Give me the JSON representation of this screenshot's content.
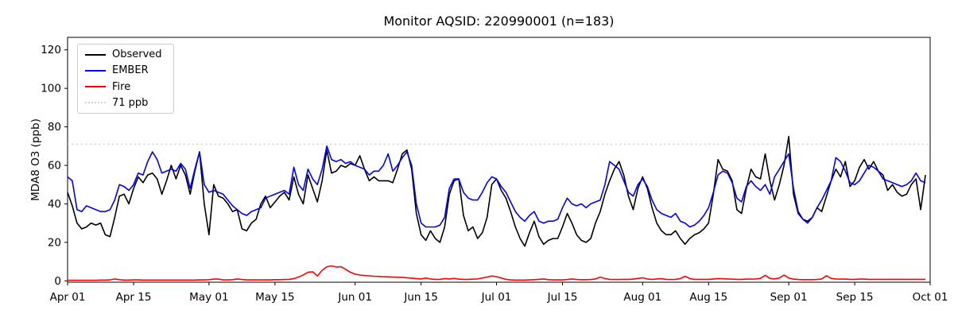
{
  "figure": {
    "title": "Monitor AQSID: 220990001 (n=183)"
  },
  "chart_data": {
    "type": "line",
    "title": "Monitor AQSID: 220990001 (n=183)",
    "xlabel": "",
    "ylabel": "MDA8 O3 (ppb)",
    "n_points": 183,
    "date_range": [
      "Apr 01",
      "Sep 30"
    ],
    "grid": false,
    "legend_position": "upper left",
    "ylim": [
      -1,
      126.5
    ],
    "y_ticks": [
      0,
      20,
      40,
      60,
      80,
      100,
      120
    ],
    "x_ticks": [
      {
        "label": "Apr 01",
        "day": 0
      },
      {
        "label": "Apr 15",
        "day": 14
      },
      {
        "label": "May 01",
        "day": 30
      },
      {
        "label": "May 15",
        "day": 44
      },
      {
        "label": "Jun 01",
        "day": 61
      },
      {
        "label": "Jun 15",
        "day": 75
      },
      {
        "label": "Jul 01",
        "day": 91
      },
      {
        "label": "Jul 15",
        "day": 105
      },
      {
        "label": "Aug 01",
        "day": 122
      },
      {
        "label": "Aug 15",
        "day": 136
      },
      {
        "label": "Sep 01",
        "day": 153
      },
      {
        "label": "Sep 15",
        "day": 167
      },
      {
        "label": "Oct 01",
        "day": 183
      }
    ],
    "threshold": {
      "value": 71,
      "label": "71 ppb",
      "color": "#d3d3d3",
      "style": "dotted"
    },
    "legend": [
      {
        "label": "Observed",
        "color": "#000000",
        "style": "solid"
      },
      {
        "label": "EMBER",
        "color": "#0000ff",
        "style": "solid"
      },
      {
        "label": "Fire",
        "color": "#ff0000",
        "style": "solid"
      },
      {
        "label": "71 ppb",
        "color": "#d3d3d3",
        "style": "dotted"
      }
    ],
    "series": [
      {
        "name": "Observed",
        "color": "#000000",
        "values": [
          46,
          39,
          30,
          27,
          28,
          30,
          29,
          30,
          24,
          23,
          33,
          44,
          45,
          40,
          48,
          54,
          51,
          55,
          56,
          53,
          45,
          52,
          60,
          53,
          60,
          55,
          45,
          57,
          67,
          40,
          24,
          50,
          44,
          43,
          40,
          36,
          37,
          27,
          26,
          30,
          32,
          40,
          44,
          38,
          41,
          44,
          46,
          42,
          54,
          45,
          40,
          55,
          48,
          41,
          52,
          68,
          56,
          57,
          60,
          59,
          61,
          60,
          65,
          58,
          52,
          54,
          52,
          52,
          52,
          51,
          58,
          66,
          68,
          58,
          35,
          24,
          21,
          26,
          22,
          20,
          28,
          45,
          52,
          53,
          34,
          26,
          28,
          22,
          25,
          33,
          50,
          53,
          47,
          43,
          36,
          28,
          22,
          18,
          25,
          31,
          23,
          19,
          21,
          22,
          22,
          28,
          35,
          30,
          24,
          21,
          20,
          22,
          30,
          36,
          45,
          52,
          58,
          62,
          55,
          44,
          37,
          48,
          54,
          48,
          38,
          30,
          26,
          24,
          24,
          26,
          22,
          19,
          22,
          24,
          25,
          27,
          30,
          45,
          63,
          58,
          57,
          52,
          37,
          35,
          48,
          58,
          54,
          53,
          66,
          52,
          42,
          50,
          60,
          75,
          45,
          35,
          32,
          31,
          33,
          38,
          36,
          44,
          52,
          58,
          54,
          62,
          49,
          52,
          59,
          63,
          58,
          62,
          57,
          55,
          47,
          50,
          46,
          44,
          45,
          50,
          53,
          37,
          55
        ]
      },
      {
        "name": "EMBER",
        "color": "#0000ff",
        "values": [
          54,
          52,
          37,
          36,
          39,
          38,
          37,
          36,
          36,
          37,
          42,
          50,
          49,
          47,
          50,
          56,
          55,
          62,
          67,
          63,
          56,
          57,
          58,
          57,
          61,
          58,
          48,
          58,
          67,
          50,
          46,
          47,
          46,
          45,
          42,
          39,
          37,
          35,
          34,
          36,
          37,
          38,
          43,
          44,
          45,
          46,
          47,
          45,
          59,
          50,
          47,
          58,
          53,
          50,
          58,
          70,
          63,
          62,
          63,
          61,
          62,
          60,
          59,
          58,
          55,
          57,
          57,
          60,
          66,
          57,
          60,
          64,
          67,
          60,
          40,
          30,
          28,
          28,
          28,
          29,
          33,
          48,
          53,
          53,
          46,
          43,
          42,
          42,
          46,
          51,
          54,
          53,
          49,
          46,
          41,
          36,
          33,
          31,
          34,
          36,
          31,
          30,
          31,
          31,
          32,
          38,
          43,
          40,
          39,
          40,
          38,
          40,
          41,
          42,
          50,
          62,
          60,
          58,
          52,
          46,
          44,
          50,
          53,
          49,
          42,
          37,
          35,
          34,
          33,
          35,
          31,
          30,
          28,
          29,
          31,
          34,
          38,
          46,
          55,
          57,
          56,
          51,
          43,
          41,
          49,
          52,
          49,
          47,
          50,
          45,
          54,
          58,
          62,
          66,
          48,
          36,
          32,
          30,
          33,
          38,
          42,
          47,
          52,
          64,
          62,
          57,
          51,
          50,
          52,
          56,
          60,
          59,
          57,
          53,
          52,
          51,
          50,
          49,
          50,
          52,
          56,
          52,
          51
        ]
      },
      {
        "name": "Fire",
        "color": "#ff0000",
        "values": [
          0.3,
          0.3,
          0.3,
          0.3,
          0.3,
          0.3,
          0.3,
          0.4,
          0.4,
          0.5,
          1.0,
          0.6,
          0.4,
          0.4,
          0.5,
          0.5,
          0.4,
          0.4,
          0.4,
          0.4,
          0.4,
          0.4,
          0.4,
          0.4,
          0.4,
          0.4,
          0.4,
          0.4,
          0.5,
          0.5,
          0.6,
          0.9,
          0.9,
          0.5,
          0.5,
          0.6,
          1.0,
          0.7,
          0.5,
          0.5,
          0.5,
          0.5,
          0.5,
          0.5,
          0.6,
          0.6,
          0.7,
          0.8,
          1.2,
          2.0,
          3.0,
          4.5,
          4.7,
          2.5,
          5.5,
          7.3,
          7.8,
          7.2,
          7.4,
          6.0,
          4.5,
          3.5,
          3.0,
          2.8,
          2.6,
          2.4,
          2.3,
          2.2,
          2.1,
          2.0,
          1.9,
          1.8,
          1.6,
          1.4,
          1.2,
          1.0,
          1.5,
          1.0,
          0.8,
          0.8,
          1.2,
          1.0,
          1.3,
          0.9,
          0.8,
          0.8,
          0.9,
          1.0,
          1.5,
          2.0,
          2.5,
          2.2,
          1.5,
          0.8,
          0.5,
          0.4,
          0.4,
          0.4,
          0.5,
          0.6,
          0.8,
          1.0,
          0.6,
          0.5,
          0.5,
          0.5,
          0.7,
          1.0,
          0.7,
          0.6,
          0.6,
          0.7,
          1.0,
          2.0,
          1.2,
          0.8,
          0.7,
          0.7,
          0.8,
          0.8,
          0.9,
          1.3,
          1.6,
          1.0,
          0.8,
          1.0,
          1.1,
          0.8,
          0.7,
          0.8,
          1.2,
          2.4,
          1.2,
          0.8,
          0.8,
          0.8,
          0.8,
          1.0,
          1.2,
          1.1,
          1.0,
          0.9,
          0.8,
          0.8,
          0.9,
          0.9,
          1.0,
          1.3,
          2.9,
          1.3,
          1.0,
          1.5,
          3.0,
          1.5,
          0.9,
          0.7,
          0.6,
          0.6,
          0.6,
          0.7,
          1.0,
          2.7,
          1.3,
          1.0,
          0.9,
          0.9,
          0.8,
          0.8,
          0.9,
          0.9,
          0.8,
          0.8,
          0.8,
          0.8,
          0.8,
          0.8,
          0.8,
          0.8,
          0.8,
          0.8,
          0.8,
          0.8,
          0.8
        ]
      }
    ]
  }
}
